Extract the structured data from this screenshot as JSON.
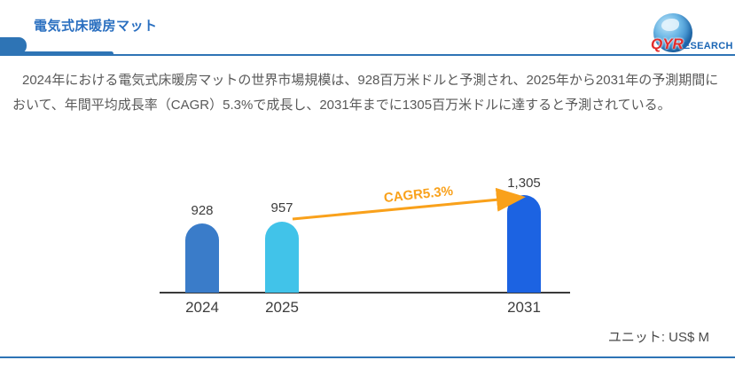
{
  "header": {
    "title": "電気式床暖房マット",
    "logo": {
      "text_primary": "QYR",
      "text_secondary": "ESEARCH"
    }
  },
  "main": {
    "description": "2024年における電気式床暖房マットの世界市場規模は、928百万米ドルと予測され、2025年から2031年の予測期間において、年間平均成長率（CAGR）5.3%で成長し、2031年までに1305百万米ドルに達すると予測されている。"
  },
  "chart_data": {
    "type": "bar",
    "title": "電気式床暖房マット",
    "categories": [
      "2024",
      "2025",
      "2031"
    ],
    "values": [
      928,
      957,
      1305
    ],
    "value_labels": [
      "928",
      "957",
      "1,305"
    ],
    "bar_colors": [
      "#3a7cc9",
      "#41c3e9",
      "#1c63e2"
    ],
    "annotation": {
      "label": "CAGR5.3%",
      "color": "#f9a11b",
      "from_category": "2025",
      "to_category": "2031"
    },
    "unit": "US$ M",
    "legend": "none",
    "grid": "off"
  },
  "footer": {
    "unit_label": "ユニット: US$ M"
  },
  "theme": {
    "accent_blue": "#2e74b5",
    "title_color": "#2a6fc0",
    "text_color": "#595959",
    "arrow_color": "#f9a11b"
  }
}
